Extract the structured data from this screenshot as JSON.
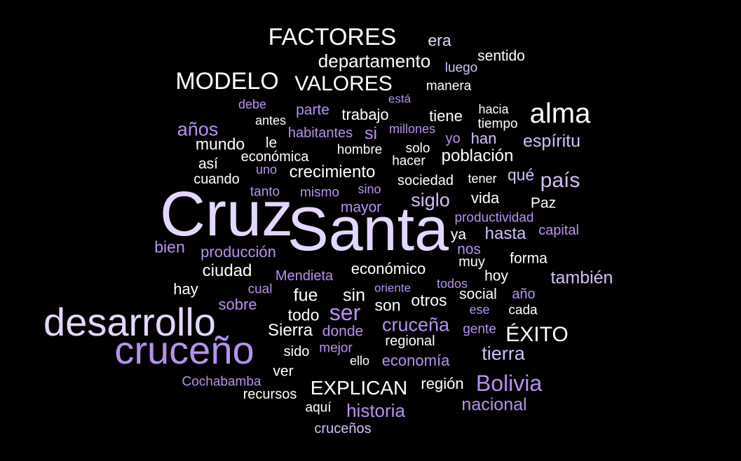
{
  "colors": {
    "background": "#000000",
    "pale_lavender": "#e4d7ff",
    "medium_purple": "#b592f0",
    "light_purple": "#d2c0f8",
    "white": "#ffffff"
  },
  "words": [
    "FACTORES",
    "era",
    "departamento",
    "sentido",
    "luego",
    "MODELO",
    "VALORES",
    "manera",
    "está",
    "debe",
    "parte",
    "trabajo",
    "tiene",
    "hacia",
    "alma",
    "antes",
    "tiempo",
    "años",
    "habitantes",
    "si",
    "millones",
    "mundo",
    "le",
    "yo",
    "han",
    "espíritu",
    "hombre",
    "solo",
    "económica",
    "hacer",
    "población",
    "así",
    "uno",
    "crecimiento",
    "qué",
    "cuando",
    "sociedad",
    "tener",
    "país",
    "tanto",
    "mismo",
    "sino",
    "siglo",
    "vida",
    "Cruz",
    "Paz",
    "mayor",
    "Santa",
    "productividad",
    "ya",
    "hasta",
    "capital",
    "bien",
    "producción",
    "nos",
    "forma",
    "muy",
    "ciudad",
    "Mendieta",
    "económico",
    "hoy",
    "también",
    "hay",
    "cual",
    "oriente",
    "todos",
    "sin",
    "social",
    "año",
    "fue",
    "sobre",
    "son",
    "otros",
    "ser",
    "ese",
    "cada",
    "desarrollo",
    "todo",
    "cruceña",
    "gente",
    "Sierra",
    "donde",
    "ÉXITO",
    "regional",
    "cruceño",
    "sido",
    "mejor",
    "tierra",
    "ello",
    "economía",
    "ver",
    "Cochabamba",
    "EXPLICAN",
    "región",
    "Bolivia",
    "recursos",
    "aquí",
    "historia",
    "nacional",
    "cruceños"
  ]
}
